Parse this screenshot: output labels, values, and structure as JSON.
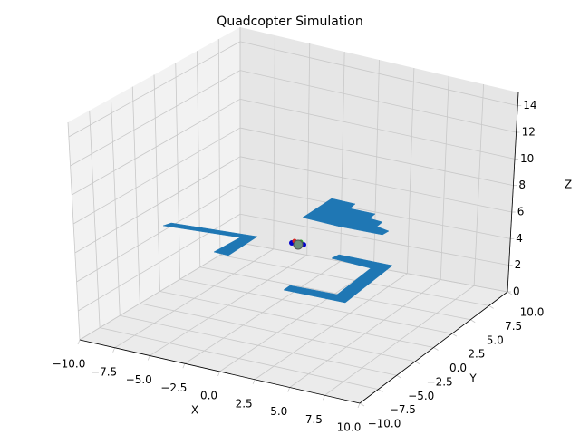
{
  "chart_data": {
    "type": "scatter3d",
    "title": "Quadcopter Simulation",
    "xlabel": "X",
    "ylabel": "Y",
    "zlabel": "Z",
    "xlim": [
      -10,
      10
    ],
    "ylim": [
      -10,
      10
    ],
    "zlim": [
      0,
      15
    ],
    "xticks": [
      {
        "value": -10,
        "label": "−10.0"
      },
      {
        "value": -7.5,
        "label": "−7.5"
      },
      {
        "value": -5,
        "label": "−5.0"
      },
      {
        "value": -2.5,
        "label": "−2.5"
      },
      {
        "value": 0,
        "label": "0.0"
      },
      {
        "value": 2.5,
        "label": "2.5"
      },
      {
        "value": 5,
        "label": "5.0"
      },
      {
        "value": 7.5,
        "label": "7.5"
      },
      {
        "value": 10,
        "label": "10.0"
      }
    ],
    "yticks": [
      {
        "value": -10,
        "label": "−10.0"
      },
      {
        "value": -7.5,
        "label": "−7.5"
      },
      {
        "value": -5,
        "label": "−5.0"
      },
      {
        "value": -2.5,
        "label": "−2.5"
      },
      {
        "value": 0,
        "label": "0.0"
      },
      {
        "value": 2.5,
        "label": "2.5"
      },
      {
        "value": 5,
        "label": "5.0"
      },
      {
        "value": 7.5,
        "label": "7.5"
      },
      {
        "value": 10,
        "label": "10.0"
      }
    ],
    "zticks": [
      0,
      2,
      4,
      6,
      8,
      10,
      12,
      14
    ],
    "grid": true
  }
}
